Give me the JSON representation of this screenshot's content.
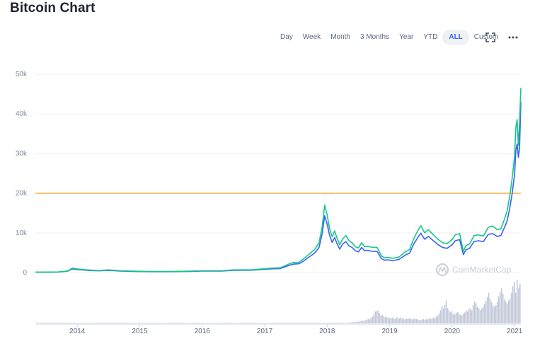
{
  "page": {
    "title": "Bitcoin Chart"
  },
  "toolbar": {
    "ranges": [
      "Day",
      "Week",
      "Month",
      "3 Months",
      "Year",
      "YTD",
      "ALL",
      "Custom"
    ],
    "active": "ALL",
    "icons": [
      "fullscreen-icon",
      "more-icon"
    ]
  },
  "watermark": "CoinMarketCap",
  "colors": {
    "price": "#16c784",
    "market_cap": "#3861fb",
    "reference_line": "#f5a623",
    "volume": "#c3c9d8",
    "grid": "#eff2f5",
    "watermark": "#c9ced6"
  },
  "chart_data": {
    "type": "line",
    "x_tick_labels": [
      "2014",
      "2015",
      "2016",
      "2017",
      "2018",
      "2019",
      "2020",
      "2021"
    ],
    "y_tick_labels": [
      "0",
      "10k",
      "20k",
      "30k",
      "40k",
      "50k"
    ],
    "ylim": [
      0,
      50000
    ],
    "xlim": [
      2013.33,
      2021.1
    ],
    "grid": true,
    "reference_line": {
      "y": 20000
    },
    "series": [
      {
        "key": "price",
        "x": [
          2013.33,
          2013.5,
          2013.7,
          2013.85,
          2013.92,
          2014.0,
          2014.1,
          2014.2,
          2014.35,
          2014.5,
          2014.7,
          2014.9,
          2015.0,
          2015.2,
          2015.5,
          2015.8,
          2016.0,
          2016.3,
          2016.5,
          2016.8,
          2017.0,
          2017.1,
          2017.25,
          2017.38,
          2017.45,
          2017.55,
          2017.63,
          2017.7,
          2017.8,
          2017.87,
          2017.92,
          2017.96,
          2018.0,
          2018.04,
          2018.08,
          2018.12,
          2018.15,
          2018.2,
          2018.25,
          2018.3,
          2018.35,
          2018.4,
          2018.45,
          2018.5,
          2018.55,
          2018.6,
          2018.65,
          2018.7,
          2018.8,
          2018.87,
          2018.92,
          2018.97,
          2019.05,
          2019.15,
          2019.25,
          2019.32,
          2019.38,
          2019.45,
          2019.5,
          2019.56,
          2019.62,
          2019.7,
          2019.78,
          2019.85,
          2019.92,
          2020.0,
          2020.05,
          2020.12,
          2020.18,
          2020.22,
          2020.28,
          2020.35,
          2020.42,
          2020.5,
          2020.58,
          2020.65,
          2020.72,
          2020.78,
          2020.84,
          2020.88,
          2020.92,
          2020.96,
          2021.0,
          2021.02,
          2021.04,
          2021.06,
          2021.08,
          2021.1
        ],
        "y": [
          100,
          100,
          150,
          400,
          1100,
          900,
          750,
          600,
          500,
          650,
          450,
          350,
          300,
          250,
          250,
          350,
          450,
          450,
          650,
          700,
          950,
          1100,
          1200,
          2100,
          2500,
          2600,
          3500,
          4500,
          5800,
          7500,
          11500,
          17000,
          14500,
          11000,
          9000,
          10500,
          9000,
          7000,
          8500,
          9300,
          8000,
          7500,
          6500,
          6200,
          7500,
          6500,
          6600,
          6400,
          6300,
          4200,
          3700,
          3800,
          3600,
          3900,
          5200,
          5800,
          8300,
          10500,
          11800,
          10000,
          10800,
          9500,
          8300,
          7500,
          7300,
          8300,
          9500,
          9800,
          5300,
          6800,
          7200,
          9300,
          9500,
          9200,
          11400,
          11700,
          10800,
          11000,
          13500,
          15500,
          19000,
          23500,
          29500,
          36500,
          38500,
          32000,
          38000,
          46500
        ]
      },
      {
        "key": "market_cap",
        "x": [
          2013.33,
          2013.5,
          2013.7,
          2013.85,
          2013.92,
          2014.0,
          2014.1,
          2014.2,
          2014.35,
          2014.5,
          2014.7,
          2014.9,
          2015.0,
          2015.2,
          2015.5,
          2015.8,
          2016.0,
          2016.3,
          2016.5,
          2016.8,
          2017.0,
          2017.1,
          2017.25,
          2017.38,
          2017.45,
          2017.55,
          2017.63,
          2017.7,
          2017.8,
          2017.87,
          2017.92,
          2017.96,
          2018.0,
          2018.04,
          2018.08,
          2018.12,
          2018.15,
          2018.2,
          2018.25,
          2018.3,
          2018.35,
          2018.4,
          2018.45,
          2018.5,
          2018.55,
          2018.6,
          2018.65,
          2018.7,
          2018.8,
          2018.87,
          2018.92,
          2018.97,
          2019.05,
          2019.15,
          2019.25,
          2019.32,
          2019.38,
          2019.45,
          2019.5,
          2019.56,
          2019.62,
          2019.7,
          2019.78,
          2019.85,
          2019.92,
          2020.0,
          2020.05,
          2020.12,
          2020.18,
          2020.22,
          2020.28,
          2020.35,
          2020.42,
          2020.5,
          2020.58,
          2020.65,
          2020.72,
          2020.78,
          2020.84,
          2020.88,
          2020.92,
          2020.96,
          2021.0,
          2021.02,
          2021.04,
          2021.06,
          2021.08,
          2021.1
        ],
        "y": [
          80,
          80,
          120,
          330,
          900,
          750,
          620,
          500,
          420,
          540,
          370,
          290,
          250,
          210,
          210,
          290,
          370,
          370,
          540,
          580,
          800,
          920,
          1000,
          1750,
          2100,
          2200,
          2950,
          3800,
          4900,
          6300,
          9700,
          14300,
          12200,
          9300,
          7600,
          8800,
          7600,
          5900,
          7200,
          7800,
          6700,
          6300,
          5500,
          5200,
          6300,
          5500,
          5600,
          5400,
          5300,
          3500,
          3100,
          3200,
          3000,
          3300,
          4400,
          4900,
          7000,
          8800,
          9900,
          8400,
          9100,
          8000,
          7000,
          6300,
          6100,
          7000,
          8000,
          8300,
          4500,
          5700,
          6100,
          7800,
          8000,
          7800,
          9600,
          9800,
          9100,
          9300,
          11400,
          13000,
          16000,
          19800,
          24800,
          30700,
          32400,
          29000,
          31500,
          43000
        ]
      }
    ],
    "volume_relative": [
      0.01,
      0.01,
      0.01,
      0.01,
      0.01,
      0.01,
      0.01,
      0.01,
      0.01,
      0.01,
      0.01,
      0.01,
      0.01,
      0.01,
      0.01,
      0.01,
      0.01,
      0.01,
      0.01,
      0.01,
      0.01,
      0.01,
      0.01,
      0.01,
      0.01,
      0.01,
      0.01,
      0.01,
      0.01,
      0.01,
      0.01,
      0.01,
      0.01,
      0.01,
      0.01,
      0.01,
      0.01,
      0.01,
      0.01,
      0.01,
      0.01,
      0.01,
      0.01,
      0.01,
      0.01,
      0.01,
      0.01,
      0.01,
      0.01,
      0.01,
      0.01,
      0.01,
      0.01,
      0.01,
      0.01,
      0.01,
      0.01,
      0.01,
      0.01,
      0.01,
      0.01,
      0.01,
      0.01,
      0.01,
      0.01,
      0.01,
      0.01,
      0.01,
      0.01,
      0.01,
      0.01,
      0.01,
      0.01,
      0.01,
      0.01,
      0.01,
      0.01,
      0.01,
      0.01,
      0.01,
      0.01,
      0.01,
      0.01,
      0.01,
      0.01,
      0.01,
      0.01,
      0.01,
      0.01,
      0.01,
      0.01,
      0.01,
      0.01,
      0.01,
      0.01,
      0.01,
      0.01,
      0.01,
      0.01,
      0.01,
      0.01,
      0.01,
      0.01,
      0.01,
      0.01,
      0.01,
      0.01,
      0.01,
      0.01,
      0.01,
      0.01,
      0.01,
      0.01,
      0.01,
      0.01,
      0.01,
      0.01,
      0.01,
      0.01,
      0.01,
      0.01,
      0.01,
      0.01,
      0.01,
      0.01,
      0.01,
      0.01,
      0.01,
      0.01,
      0.01,
      0.01,
      0.01,
      0.01,
      0.01,
      0.01,
      0.01,
      0.01,
      0.01,
      0.01,
      0.01,
      0.01,
      0.01,
      0.01,
      0.01,
      0.01,
      0.01,
      0.01,
      0.01,
      0.01,
      0.01,
      0.01,
      0.01,
      0.01,
      0.01,
      0.01,
      0.01,
      0.01,
      0.01,
      0.01,
      0.01,
      0.01,
      0.01,
      0.01,
      0.01,
      0.01,
      0.01,
      0.01,
      0.01,
      0.01,
      0.01,
      0.01,
      0.01,
      0.01,
      0.01,
      0.01,
      0.01,
      0.01,
      0.01,
      0.01,
      0.01,
      0.01,
      0.01,
      0.01,
      0.01,
      0.01,
      0.01,
      0.01,
      0.01,
      0.01,
      0.01,
      0.01,
      0.01,
      0.01,
      0.01,
      0.01,
      0.01,
      0.01,
      0.01,
      0.01,
      0.01,
      0.01,
      0.01,
      0.01,
      0.01,
      0.01,
      0.01,
      0.01,
      0.01,
      0.01,
      0.01,
      0.01,
      0.01,
      0.01,
      0.01,
      0.01,
      0.01,
      0.01,
      0.01,
      0.01,
      0.01,
      0.01,
      0.02,
      0.02,
      0.03,
      0.03,
      0.03,
      0.04,
      0.03,
      0.05,
      0.06,
      0.05,
      0.07,
      0.06,
      0.08,
      0.1,
      0.09,
      0.12,
      0.15,
      0.2,
      0.27,
      0.28,
      0.3,
      0.24,
      0.18,
      0.2,
      0.16,
      0.14,
      0.15,
      0.13,
      0.12,
      0.11,
      0.13,
      0.12,
      0.1,
      0.14,
      0.12,
      0.11,
      0.13,
      0.12,
      0.1,
      0.09,
      0.11,
      0.1,
      0.12,
      0.1,
      0.09,
      0.1,
      0.11,
      0.1,
      0.09,
      0.08,
      0.07,
      0.09,
      0.1,
      0.08,
      0.1,
      0.09,
      0.12,
      0.1,
      0.11,
      0.13,
      0.12,
      0.15,
      0.18,
      0.22,
      0.3,
      0.4,
      0.34,
      0.42,
      0.52,
      0.35,
      0.3,
      0.25,
      0.28,
      0.22,
      0.2,
      0.24,
      0.26,
      0.22,
      0.2,
      0.18,
      0.22,
      0.25,
      0.3,
      0.27,
      0.32,
      0.35,
      0.3,
      0.42,
      0.5,
      0.46,
      0.38,
      0.35,
      0.3,
      0.34,
      0.38,
      0.45,
      0.52,
      0.6,
      0.7,
      0.55,
      0.48,
      0.4,
      0.38,
      0.42,
      0.5,
      0.62,
      0.72,
      0.8,
      0.68,
      0.55,
      0.5,
      0.45,
      0.52,
      0.58,
      0.7,
      0.85,
      0.95,
      0.7,
      1.0,
      0.8,
      0.9
    ]
  }
}
